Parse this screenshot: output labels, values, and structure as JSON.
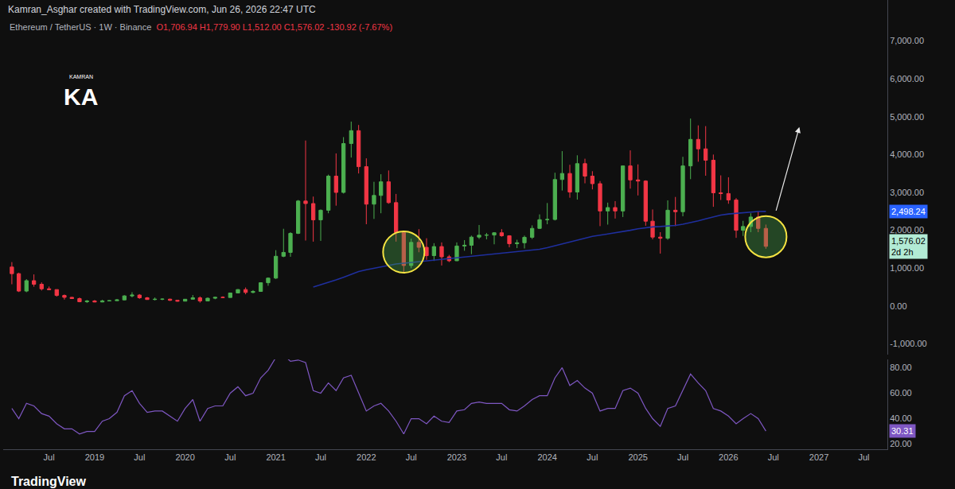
{
  "chart_data": {
    "type": "candlestick",
    "header": {
      "credit": "Kamran_Asghar created with TradingView.com, Jun 26, 2026 22:47 UTC",
      "symbol": "Ethereum / TetherUS · 1W · Binance",
      "ohlc": "O1,706.94 H1,779.90 L1,512.00 C1,576.02 -130.92 (-7.67%)"
    },
    "logo": {
      "small": "KAMRAN",
      "big": "KA"
    },
    "footer": "TradingView",
    "grid": false,
    "x": [
      "2018-02",
      "2018-03",
      "2018-04",
      "2018-05",
      "2018-06",
      "2018-07",
      "2018-08",
      "2018-09",
      "2018-10",
      "2018-11",
      "2018-12",
      "2019-01",
      "2019-02",
      "2019-03",
      "2019-04",
      "2019-05",
      "2019-06",
      "2019-07",
      "2019-08",
      "2019-09",
      "2019-10",
      "2019-11",
      "2019-12",
      "2020-01",
      "2020-02",
      "2020-03",
      "2020-04",
      "2020-05",
      "2020-06",
      "2020-07",
      "2020-08",
      "2020-09",
      "2020-10",
      "2020-11",
      "2020-12",
      "2021-01",
      "2021-02",
      "2021-03",
      "2021-04",
      "2021-05",
      "2021-06",
      "2021-07",
      "2021-08",
      "2021-09",
      "2021-10",
      "2021-11",
      "2021-12",
      "2022-01",
      "2022-02",
      "2022-03",
      "2022-04",
      "2022-05",
      "2022-06",
      "2022-07",
      "2022-08",
      "2022-09",
      "2022-10",
      "2022-11",
      "2022-12",
      "2023-01",
      "2023-02",
      "2023-03",
      "2023-04",
      "2023-05",
      "2023-06",
      "2023-07",
      "2023-08",
      "2023-09",
      "2023-10",
      "2023-11",
      "2023-12",
      "2024-01",
      "2024-02",
      "2024-03",
      "2024-04",
      "2024-05",
      "2024-06",
      "2024-07",
      "2024-08",
      "2024-09",
      "2024-10",
      "2024-11",
      "2024-12",
      "2025-01",
      "2025-02",
      "2025-03",
      "2025-04",
      "2025-05",
      "2025-06",
      "2025-07",
      "2025-08",
      "2025-09",
      "2025-10",
      "2025-11",
      "2025-12",
      "2026-01",
      "2026-02",
      "2026-03",
      "2026-04",
      "2026-05",
      "2026-06"
    ],
    "xlim": [
      "2017-12-28",
      "2027-10-04"
    ],
    "xticks": [
      {
        "value": "2018-07-01",
        "label": "Jul"
      },
      {
        "value": "2019-01-01",
        "label": "2019"
      },
      {
        "value": "2019-07-01",
        "label": "Jul"
      },
      {
        "value": "2020-01-01",
        "label": "2020"
      },
      {
        "value": "2020-07-01",
        "label": "Jul"
      },
      {
        "value": "2021-01-01",
        "label": "2021"
      },
      {
        "value": "2021-07-01",
        "label": "Jul"
      },
      {
        "value": "2022-01-01",
        "label": "2022"
      },
      {
        "value": "2022-07-01",
        "label": "Jul"
      },
      {
        "value": "2023-01-01",
        "label": "2023"
      },
      {
        "value": "2023-07-01",
        "label": "Jul"
      },
      {
        "value": "2024-01-01",
        "label": "2024"
      },
      {
        "value": "2024-07-01",
        "label": "Jul"
      },
      {
        "value": "2025-01-01",
        "label": "2025"
      },
      {
        "value": "2025-07-01",
        "label": "Jul"
      },
      {
        "value": "2026-01-01",
        "label": "2026"
      },
      {
        "value": "2026-07-01",
        "label": "Jul"
      },
      {
        "value": "2027-01-01",
        "label": "2027"
      },
      {
        "value": "2027-07-01",
        "label": "Jul"
      }
    ],
    "panels": [
      {
        "ylim": [
          -1290,
          8080
        ],
        "yticks": [
          {
            "value": -1000,
            "label": "-1,000.00"
          },
          {
            "value": 0,
            "label": "0.00"
          },
          {
            "value": 1000,
            "label": "1,000.00"
          },
          {
            "value": 2000,
            "label": "2,000.00"
          },
          {
            "value": 3000,
            "label": "3,000.00"
          },
          {
            "value": 4000,
            "label": "4,000.00"
          },
          {
            "value": 5000,
            "label": "5,000.00"
          },
          {
            "value": 6000,
            "label": "6,000.00"
          },
          {
            "value": 7000,
            "label": "7,000.00"
          }
        ],
        "series": [
          {
            "type": "candlestick",
            "colors": [
              "#4caf50",
              "#f23645"
            ],
            "open": [
              1030,
              855,
              395,
              670,
              575,
              455,
              435,
              280,
              230,
              197,
              113,
              133,
              107,
              136,
              141,
              162,
              268,
              290,
              218,
              172,
              180,
              182,
              152,
              129,
              180,
              217,
              133,
              206,
              231,
              226,
              345,
              435,
              360,
              386,
              615,
              737,
              1314,
              1416,
              1918,
              2772,
              2706,
              2275,
              2530,
              3430,
              3000,
              4290,
              4630,
              3680,
              2690,
              2920,
              3280,
              2730,
              1940,
              1070,
              1680,
              1550,
              1330,
              1570,
              1300,
              1195,
              1585,
              1605,
              1820,
              1870,
              1875,
              1935,
              1855,
              1645,
              1670,
              1815,
              2050,
              2280,
              2285,
              3340,
              3500,
              3010,
              3760,
              3430,
              3230,
              2510,
              2600,
              2510,
              3700,
              3330,
              3300,
              2240,
              1820,
              1790,
              2530,
              2490,
              3700,
              4400,
              4150,
              3850,
              2990,
              2970,
              2800,
              2000,
              2100,
              2350,
              2050
            ],
            "high": [
              1160,
              880,
              710,
              835,
              625,
              515,
              435,
              305,
              240,
              225,
              160,
              160,
              165,
              150,
              185,
              285,
              365,
              315,
              240,
              225,
              200,
              195,
              155,
              185,
              290,
              255,
              225,
              245,
              255,
              350,
              445,
              490,
              420,
              620,
              755,
              1475,
              2040,
              1950,
              2800,
              4370,
              2890,
              2550,
              3470,
              4030,
              4460,
              4870,
              4780,
              3900,
              3280,
              3480,
              3580,
              2960,
              1970,
              1780,
              2030,
              1790,
              1660,
              1680,
              1350,
              1680,
              1740,
              1860,
              2140,
              1930,
              1950,
              2030,
              1870,
              1750,
              1860,
              2130,
              2420,
              2720,
              3520,
              4090,
              3730,
              3980,
              3890,
              3560,
              3300,
              2730,
              2770,
              3700,
              4110,
              3740,
              3320,
              2550,
              1950,
              2790,
              2880,
              3940,
              4950,
              4770,
              4750,
              4000,
              3450,
              3400,
              2850,
              2250,
              2450,
              2500,
              2150
            ],
            "low": [
              575,
              370,
              365,
              510,
              410,
              425,
              250,
              170,
              190,
              100,
              80,
              100,
              100,
              125,
              140,
              155,
              230,
              190,
              165,
              150,
              155,
              135,
              115,
              125,
              180,
              90,
              130,
              180,
              215,
              225,
              335,
              310,
              335,
              375,
              535,
              715,
              1290,
              1300,
              1900,
              1730,
              1700,
              1720,
              2450,
              2650,
              2970,
              3920,
              3500,
              2160,
              2300,
              2450,
              2700,
              1700,
              880,
              1000,
              1420,
              1220,
              1190,
              1070,
              1160,
              1190,
              1460,
              1370,
              1770,
              1760,
              1630,
              1830,
              1550,
              1530,
              1520,
              1770,
              2040,
              2160,
              2260,
              3050,
              2860,
              2810,
              3240,
              3080,
              2110,
              2150,
              2310,
              2350,
              3100,
              2920,
              2120,
              1760,
              1385,
              1750,
              2110,
              2370,
              3350,
              3810,
              3440,
              2620,
              2800,
              2700,
              1800,
              1850,
              1950,
              1950,
              1512
            ],
            "close": [
              855,
              395,
              670,
              575,
              455,
              435,
              280,
              230,
              197,
              113,
              133,
              107,
              136,
              141,
              162,
              268,
              290,
              218,
              172,
              180,
              182,
              152,
              129,
              180,
              217,
              133,
              206,
              231,
              226,
              345,
              435,
              360,
              386,
              615,
              737,
              1314,
              1416,
              1918,
              2772,
              2706,
              2275,
              2530,
              3430,
              3000,
              4290,
              4630,
              3680,
              2690,
              2920,
              3280,
              2730,
              1940,
              1070,
              1680,
              1550,
              1330,
              1570,
              1300,
              1195,
              1585,
              1605,
              1820,
              1870,
              1875,
              1935,
              1855,
              1645,
              1670,
              1815,
              2050,
              2280,
              2285,
              3340,
              3500,
              3010,
              3760,
              3430,
              3230,
              2510,
              2600,
              2510,
              3700,
              3330,
              3300,
              2240,
              1820,
              1790,
              2530,
              2490,
              3700,
              4400,
              4150,
              3850,
              2990,
              2970,
              2800,
              2000,
              2100,
              2350,
              2050,
              1576.02
            ]
          },
          {
            "type": "line",
            "color": "#1f2f9e",
            "values": [
              null,
              null,
              null,
              null,
              null,
              null,
              null,
              null,
              null,
              null,
              null,
              null,
              null,
              null,
              null,
              null,
              null,
              null,
              null,
              null,
              null,
              null,
              null,
              null,
              null,
              null,
              null,
              null,
              null,
              null,
              null,
              null,
              null,
              null,
              null,
              null,
              null,
              null,
              null,
              null,
              500,
              560,
              620,
              690,
              760,
              840,
              910,
              960,
              1000,
              1040,
              1080,
              1110,
              1130,
              1150,
              1170,
              1190,
              1210,
              1230,
              1250,
              1270,
              1290,
              1310,
              1330,
              1350,
              1370,
              1390,
              1410,
              1430,
              1450,
              1470,
              1500,
              1540,
              1590,
              1650,
              1700,
              1750,
              1800,
              1840,
              1870,
              1900,
              1930,
              1960,
              2000,
              2040,
              2070,
              2090,
              2100,
              2110,
              2130,
              2160,
              2200,
              2250,
              2300,
              2350,
              2400,
              2430,
              2450,
              2470,
              2485,
              2495,
              2498.24
            ]
          }
        ],
        "price_labels": [
          {
            "value": 2498.24,
            "label": "2,498.24",
            "color": "#2962ff"
          },
          {
            "value": 1576.02,
            "label": "1,576.02",
            "countdown": "2d 2h",
            "color": "#b2ebd5"
          }
        ]
      },
      {
        "ylim": [
          16,
          86.5
        ],
        "yticks": [
          {
            "value": 20,
            "label": "20.00"
          },
          {
            "value": 40,
            "label": "40.00"
          },
          {
            "value": 60,
            "label": "60.00"
          },
          {
            "value": 80,
            "label": "80.00"
          }
        ],
        "series": [
          {
            "type": "line",
            "color": "#7e57c2",
            "values": [
              48,
              40,
              52,
              50,
              44,
              42,
              36,
              32,
              32,
              28,
              30,
              30,
              38,
              40,
              45,
              58,
              62,
              52,
              45,
              46,
              46,
              42,
              38,
              48,
              55,
              38,
              48,
              50,
              50,
              60,
              65,
              58,
              60,
              72,
              78,
              88,
              90,
              85,
              86,
              84,
              62,
              60,
              68,
              62,
              72,
              74,
              60,
              46,
              50,
              52,
              46,
              38,
              28,
              40,
              40,
              36,
              42,
              38,
              37,
              46,
              47,
              52,
              53,
              52,
              52,
              52,
              47,
              46,
              50,
              55,
              58,
              58,
              72,
              80,
              66,
              70,
              64,
              60,
              46,
              48,
              48,
              62,
              64,
              60,
              48,
              40,
              34,
              48,
              50,
              62,
              75,
              68,
              62,
              48,
              46,
              42,
              36,
              40,
              44,
              40,
              30.31
            ]
          }
        ],
        "price_labels": [
          {
            "value": 30.31,
            "label": "30.31",
            "color": "#7e57c2"
          }
        ]
      }
    ]
  }
}
